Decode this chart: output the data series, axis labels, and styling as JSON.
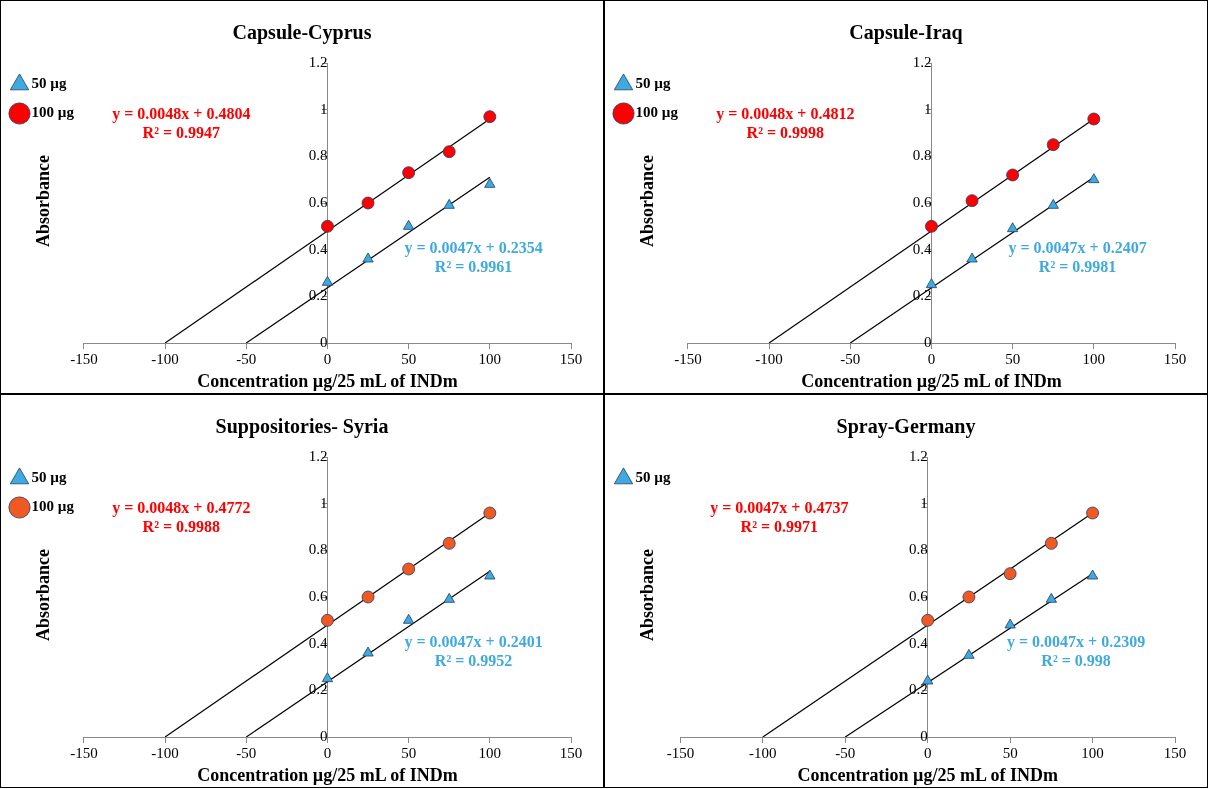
{
  "chart_data": [
    {
      "type": "scatter",
      "title": "Capsule-Cyprus",
      "xlabel": "Concentration µg/25 mL of INDm",
      "ylabel": "Absorbance",
      "x": [
        0,
        25,
        50,
        75,
        100
      ],
      "xlim": [
        -150,
        150
      ],
      "xticks": [
        -150,
        -100,
        -50,
        0,
        50,
        100,
        150
      ],
      "ylim": [
        0,
        1.2
      ],
      "yticks": [
        0,
        0.2,
        0.4,
        0.6,
        0.8,
        1,
        1.2
      ],
      "grid": false,
      "legend": "top left",
      "series": [
        {
          "name": "50 µg",
          "color": "#3fa9e0",
          "marker": "triangle",
          "values": [
            0.26,
            0.36,
            0.5,
            0.59,
            0.68
          ]
        },
        {
          "name": "100 µg",
          "color": "#ff0000",
          "marker": "circle",
          "values": [
            0.5,
            0.6,
            0.73,
            0.82,
            0.97
          ]
        },
        {
          "type": "line",
          "color": "#000000",
          "marker": "none",
          "x": [
            -50,
            100
          ],
          "values": [
            0,
            0.71
          ]
        },
        {
          "type": "line",
          "color": "#000000",
          "marker": "none",
          "x": [
            -100,
            100
          ],
          "values": [
            0,
            0.96
          ]
        }
      ],
      "annotations": [
        "y = 0.0047x + 0.2354\nR² = 0.9961",
        "y = 0.0048x + 0.4804\nR² = 0.9947"
      ]
    },
    {
      "type": "scatter",
      "title": "Capsule-Iraq",
      "xlabel": "Concentration µg/25 mL of INDm",
      "ylabel": "Absorbance",
      "x": [
        0,
        25,
        50,
        75,
        100
      ],
      "xlim": [
        -150,
        150
      ],
      "xticks": [
        -150,
        -100,
        -50,
        0,
        50,
        100,
        150
      ],
      "ylim": [
        0,
        1.2
      ],
      "yticks": [
        0,
        0.2,
        0.4,
        0.6,
        0.8,
        1,
        1.2
      ],
      "grid": false,
      "legend": "top left",
      "series": [
        {
          "name": "50 µg",
          "color": "#3fa9e0",
          "marker": "triangle",
          "values": [
            0.25,
            0.36,
            0.49,
            0.59,
            0.7
          ]
        },
        {
          "name": "100 µg",
          "color": "#ff0000",
          "marker": "circle",
          "values": [
            0.5,
            0.61,
            0.72,
            0.85,
            0.96
          ]
        },
        {
          "type": "line",
          "color": "#000000",
          "marker": "none",
          "x": [
            -50,
            100
          ],
          "values": [
            0,
            0.71
          ]
        },
        {
          "type": "line",
          "color": "#000000",
          "marker": "none",
          "x": [
            -100,
            100
          ],
          "values": [
            0,
            0.96
          ]
        }
      ],
      "annotations": [
        "y = 0.0047x + 0.2407\nR² = 0.9981",
        "y = 0.0048x + 0.4812\nR² = 0.9998"
      ]
    },
    {
      "type": "scatter",
      "title": "Suppositories- Syria",
      "xlabel": "Concentration µg/25 mL of INDm",
      "ylabel": "Absorbance",
      "x": [
        0,
        25,
        50,
        75,
        100
      ],
      "xlim": [
        -150,
        150
      ],
      "xticks": [
        -150,
        -100,
        -50,
        0,
        50,
        100,
        150
      ],
      "ylim": [
        0,
        1.2
      ],
      "yticks": [
        0,
        0.2,
        0.4,
        0.6,
        0.8,
        1,
        1.2
      ],
      "grid": false,
      "legend": "top left",
      "series": [
        {
          "name": "50 µg",
          "color": "#3fa9e0",
          "marker": "triangle",
          "values": [
            0.25,
            0.36,
            0.5,
            0.59,
            0.69
          ]
        },
        {
          "name": "100 µg",
          "color": "#f05a22",
          "marker": "circle",
          "values": [
            0.5,
            0.6,
            0.72,
            0.83,
            0.96
          ]
        },
        {
          "type": "line",
          "color": "#000000",
          "marker": "none",
          "x": [
            -50,
            100
          ],
          "values": [
            0,
            0.71
          ]
        },
        {
          "type": "line",
          "color": "#000000",
          "marker": "none",
          "x": [
            -100,
            100
          ],
          "values": [
            0,
            0.96
          ]
        }
      ],
      "annotations": [
        "y = 0.0047x + 0.2401\nR² = 0.9952",
        "y = 0.0048x + 0.4772\nR² = 0.9988"
      ]
    },
    {
      "type": "scatter",
      "title": "Spray-Germany",
      "xlabel": "Concentration µg/25 mL of INDm",
      "ylabel": "Absorbance",
      "x": [
        0,
        25,
        50,
        75,
        100
      ],
      "xlim": [
        -150,
        150
      ],
      "xticks": [
        -150,
        -100,
        -50,
        0,
        50,
        100,
        150
      ],
      "ylim": [
        0,
        1.2
      ],
      "yticks": [
        0,
        0.2,
        0.4,
        0.6,
        0.8,
        1,
        1.2
      ],
      "grid": false,
      "legend": "top left",
      "series": [
        {
          "name": "50 µg",
          "color": "#3fa9e0",
          "marker": "triangle",
          "values": [
            0.24,
            0.35,
            0.48,
            0.59,
            0.69
          ]
        },
        {
          "color": "#f05a22",
          "marker": "circle",
          "values": [
            0.5,
            0.6,
            0.7,
            0.83,
            0.96
          ]
        },
        {
          "type": "line",
          "color": "#000000",
          "marker": "none",
          "x": [
            -50,
            100
          ],
          "values": [
            0,
            0.7
          ]
        },
        {
          "type": "line",
          "color": "#000000",
          "marker": "none",
          "x": [
            -100,
            100
          ],
          "values": [
            0,
            0.96
          ]
        }
      ],
      "annotations": [
        "y = 0.0047x + 0.2309\nR² = 0.998",
        "y = 0.0047x + 0.4737\nR² = 0.9971"
      ]
    }
  ]
}
